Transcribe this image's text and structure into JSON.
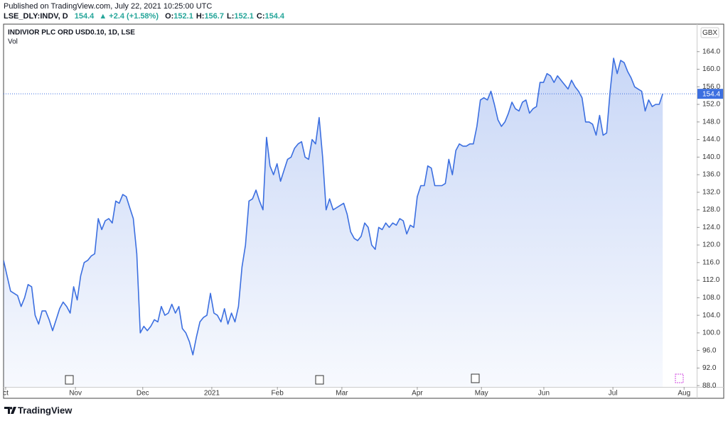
{
  "chart_data": {
    "type": "area",
    "published": "Published on TradingView.com, July 22, 2021 10:25:00 UTC",
    "symbol_line": "LSE_DLY:INDV, D",
    "last": 154.4,
    "change": "▲ +2.4 (+1.58%)",
    "ohlc": [
      {
        "label": "O:",
        "value": 152.1
      },
      {
        "label": "H:",
        "value": 156.7
      },
      {
        "label": "L:",
        "value": 152.1
      },
      {
        "label": "C:",
        "value": 154.4
      }
    ],
    "title": "INDIVIOR PLC ORD USD0.10, 1D, LSE",
    "volume_label": "Vol",
    "currency": "GBX",
    "brand": "TradingView",
    "series": [
      {
        "color": "#3c6fe0",
        "values": [
          116.5,
          113,
          109.5,
          109,
          108.5,
          106,
          108,
          111,
          110.5,
          104,
          102,
          105,
          105,
          103,
          100.5,
          103,
          105.5,
          107,
          106,
          104.5,
          110.5,
          107.5,
          113,
          116,
          116.5,
          117.5,
          118,
          126,
          123.5,
          125.5,
          126,
          125,
          130,
          129.5,
          131.5,
          131,
          128.5,
          126,
          118,
          100,
          101.5,
          100.5,
          101.5,
          103,
          102.5,
          106,
          104,
          104.5,
          106.5,
          104.5,
          106,
          101,
          100,
          98,
          95,
          99,
          102.5,
          103.5,
          104,
          109,
          104.5,
          104,
          102.5,
          105.5,
          102,
          104.5,
          102.5,
          106,
          115,
          120,
          130,
          130.5,
          132.5,
          130,
          128,
          144.5,
          138,
          136,
          138.5,
          134.5,
          137,
          139.5,
          140,
          142,
          143,
          143.5,
          140,
          139.5,
          144,
          143,
          149,
          140,
          128,
          130.5,
          128,
          128.5,
          129,
          129.5,
          127,
          123,
          121.5,
          121,
          122,
          125,
          124,
          120,
          119,
          124,
          123.5,
          125,
          124,
          125,
          124.5,
          126,
          125.5,
          122.5,
          124.5,
          124,
          131,
          133.5,
          133.5,
          138,
          137.5,
          133.5,
          133.5,
          133.5,
          134,
          139.5,
          136,
          141.5,
          143,
          142.5,
          142.5,
          143,
          143,
          147,
          153,
          153.5,
          153,
          155,
          152,
          148.5,
          147,
          148,
          150,
          152.5,
          151,
          150.5,
          152.5,
          153,
          150,
          151,
          151.5,
          157,
          157,
          159,
          158.5,
          157,
          158.5,
          157.5,
          156.5,
          155.5,
          157.5,
          156,
          155,
          153.5,
          148,
          148,
          147.5,
          145,
          149.5,
          145,
          145.5,
          155,
          162.5,
          159,
          162,
          161.5,
          159.5,
          158,
          156,
          155.5,
          155,
          150.5,
          153,
          151.5,
          152,
          152,
          154.4
        ]
      }
    ],
    "xlim": [
      0,
      197.7
    ],
    "xticks": [
      {
        "value": 0.6,
        "label": "ct"
      },
      {
        "value": 20.5,
        "label": "Nov"
      },
      {
        "value": 39.7,
        "label": "Dec"
      },
      {
        "value": 59.4,
        "label": "2021"
      },
      {
        "value": 78.1,
        "label": "Feb"
      },
      {
        "value": 96.5,
        "label": "Mar"
      },
      {
        "value": 118,
        "label": "Apr"
      },
      {
        "value": 136.3,
        "label": "May"
      },
      {
        "value": 154.1,
        "label": "Jun"
      },
      {
        "value": 173.8,
        "label": "Jul"
      },
      {
        "value": 194.1,
        "label": "Aug"
      }
    ],
    "ylim": [
      87.7,
      170.1
    ],
    "yticks": [
      {
        "value": 88,
        "label": "88.0"
      },
      {
        "value": 92,
        "label": "92.0"
      },
      {
        "value": 96,
        "label": "96.0"
      },
      {
        "value": 100,
        "label": "100.0"
      },
      {
        "value": 104,
        "label": "104.0"
      },
      {
        "value": 108,
        "label": "108.0"
      },
      {
        "value": 112,
        "label": "112.0"
      },
      {
        "value": 116,
        "label": "116.0"
      },
      {
        "value": 120,
        "label": "120.0"
      },
      {
        "value": 124,
        "label": "124.0"
      },
      {
        "value": 128,
        "label": "128.0"
      },
      {
        "value": 132,
        "label": "132.0"
      },
      {
        "value": 136,
        "label": "136.0"
      },
      {
        "value": 140,
        "label": "140.0"
      },
      {
        "value": 144,
        "label": "144.0"
      },
      {
        "value": 148,
        "label": "148.0"
      },
      {
        "value": 152,
        "label": "152.0"
      },
      {
        "value": 156,
        "label": "156.0"
      },
      {
        "value": 160,
        "label": "160.0"
      },
      {
        "value": 164,
        "label": "164.0"
      }
    ],
    "grid": false
  }
}
